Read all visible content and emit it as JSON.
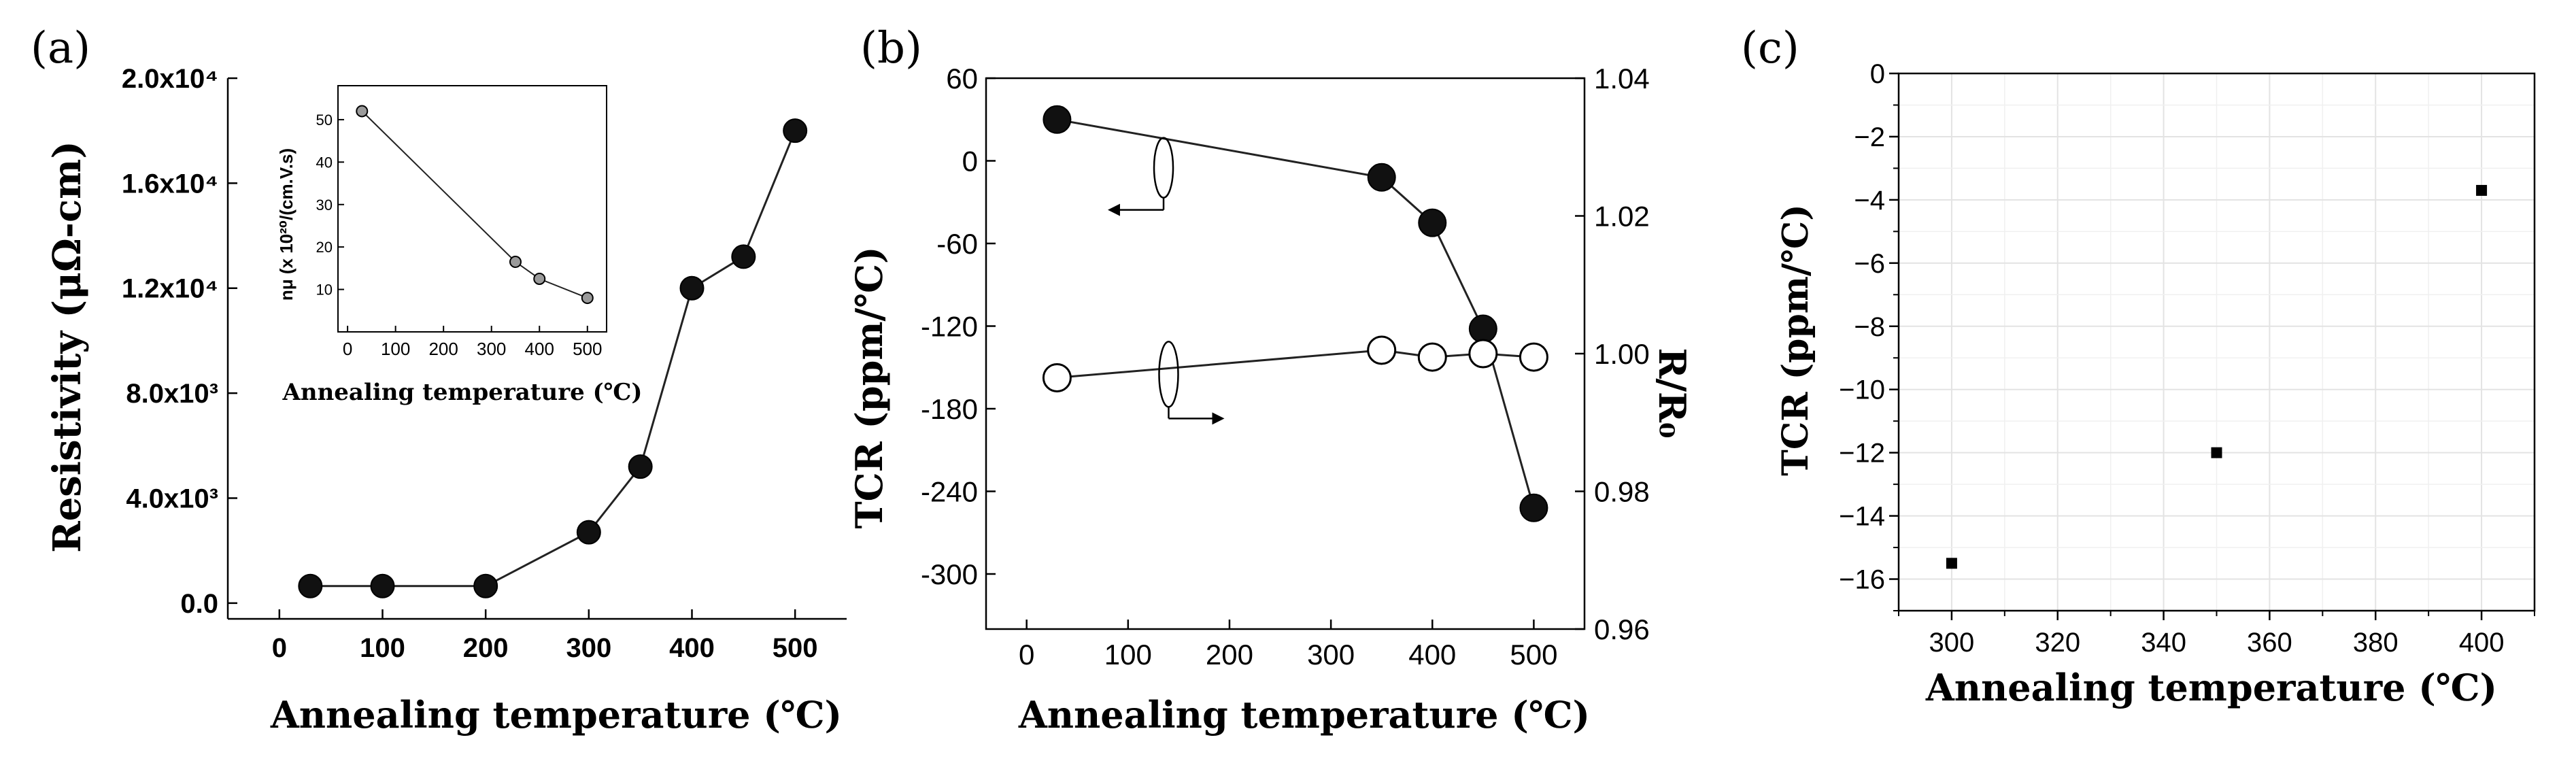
{
  "panel_labels": [
    "(a)",
    "(b)",
    "(c)"
  ],
  "chart_data": [
    {
      "id": "a",
      "type": "line",
      "xlabel": "Annealing temperature (℃)",
      "ylabel": "Resistivity (μΩ-cm)",
      "xlim": [
        -50,
        550
      ],
      "ylim": [
        -600,
        20000
      ],
      "xticks": [
        0,
        100,
        200,
        300,
        400,
        500
      ],
      "xtick_labels": [
        "0",
        "100",
        "200",
        "300",
        "400",
        "500"
      ],
      "yticks": [
        0,
        4000,
        8000,
        12000,
        16000,
        20000
      ],
      "ytick_labels": [
        "0.0",
        "4.0x10³",
        "8.0x10³",
        "1.2x10⁴",
        "1.6x10⁴",
        "2.0x10⁴"
      ],
      "series": [
        {
          "name": "Resistivity",
          "marker": "filled-circle",
          "x": [
            30,
            100,
            200,
            300,
            350,
            400,
            450,
            500
          ],
          "y": [
            650,
            650,
            650,
            2700,
            5200,
            12000,
            13200,
            18000
          ]
        }
      ],
      "inset": {
        "type": "line",
        "xlabel": "Annealing temperature (℃)",
        "ylabel": "nμ (x 10²⁰/(cm.V.s)",
        "xlim": [
          -20,
          540
        ],
        "ylim": [
          0,
          58
        ],
        "xticks": [
          0,
          100,
          200,
          300,
          400,
          500
        ],
        "xtick_labels": [
          "0",
          "100",
          "200",
          "300",
          "400",
          "500"
        ],
        "yticks": [
          10,
          20,
          30,
          40,
          50
        ],
        "ytick_labels": [
          "10",
          "20",
          "30",
          "40",
          "50"
        ],
        "series": [
          {
            "name": "nμ",
            "marker": "shaded-circle",
            "x": [
              30,
              350,
              400,
              500
            ],
            "y": [
              52,
              16.5,
              12.5,
              8
            ]
          }
        ]
      }
    },
    {
      "id": "b",
      "type": "line",
      "xlabel": "Annealing temperature (℃)",
      "ylabel": "TCR (ppm/℃)",
      "ylabel_right": "R/R₀",
      "xlim": [
        -40,
        550
      ],
      "ylim": [
        -340,
        60
      ],
      "ylim_right": [
        0.96,
        1.04
      ],
      "xticks": [
        0,
        100,
        200,
        300,
        400,
        500
      ],
      "xtick_labels": [
        "0",
        "100",
        "200",
        "300",
        "400",
        "500"
      ],
      "yticks": [
        60,
        0,
        -60,
        -120,
        -180,
        -240,
        -300
      ],
      "ytick_labels": [
        "60",
        "0",
        "-60",
        "-120",
        "-180",
        "-240",
        "-300"
      ],
      "yticks_right": [
        1.04,
        1.02,
        1.0,
        0.98,
        0.96
      ],
      "ytick_labels_right": [
        "1.04",
        "1.02",
        "1.00",
        "0.98",
        "0.96"
      ],
      "series": [
        {
          "name": "TCR",
          "axis": "left",
          "marker": "filled-circle",
          "x": [
            30,
            350,
            400,
            450,
            500
          ],
          "y": [
            30,
            -12,
            -45,
            -122,
            -252
          ]
        },
        {
          "name": "R/R0",
          "axis": "right",
          "marker": "open-circle",
          "x": [
            30,
            350,
            400,
            450,
            500
          ],
          "y": [
            0.9965,
            1.0005,
            0.9995,
            1.0,
            0.9995
          ]
        }
      ]
    },
    {
      "id": "c",
      "type": "scatter",
      "xlabel": "Annealing temperature (℃)",
      "ylabel": "TCR (ppm/℃)",
      "xlim": [
        290,
        410
      ],
      "ylim": [
        -17,
        0
      ],
      "grid": true,
      "xticks": [
        300,
        320,
        340,
        360,
        380,
        400
      ],
      "xtick_labels": [
        "300",
        "320",
        "340",
        "360",
        "380",
        "400"
      ],
      "yticks": [
        0,
        -2,
        -4,
        -6,
        -8,
        -10,
        -12,
        -14,
        -16
      ],
      "ytick_labels": [
        "0",
        "−2",
        "−4",
        "−6",
        "−8",
        "−10",
        "−12",
        "−14",
        "−16"
      ],
      "series": [
        {
          "name": "TCR",
          "marker": "square",
          "x": [
            300,
            350,
            400
          ],
          "y": [
            -15.5,
            -12.0,
            -3.7
          ]
        }
      ]
    }
  ]
}
